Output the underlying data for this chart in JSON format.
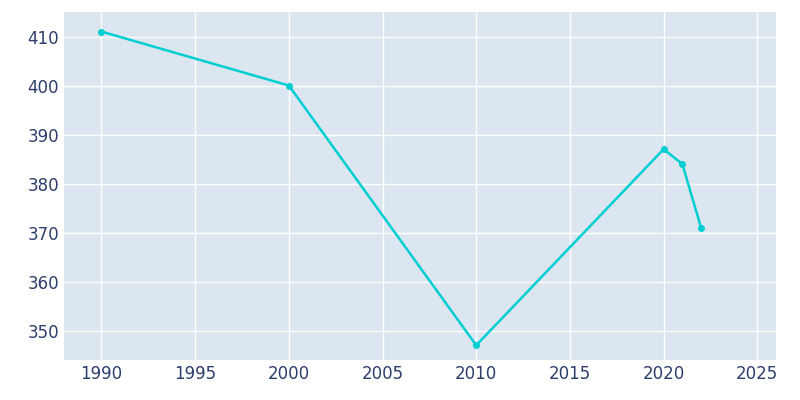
{
  "years": [
    1990,
    2000,
    2010,
    2020,
    2021,
    2022
  ],
  "population": [
    411,
    400,
    347,
    387,
    384,
    371
  ],
  "line_color": "#00CED1",
  "line_width": 1.8,
  "marker": "o",
  "marker_size": 4,
  "plot_bg_color": "#dce6f0",
  "fig_bg_color": "#ffffff",
  "grid_color": "#ffffff",
  "xlim": [
    1988,
    2026
  ],
  "ylim": [
    344,
    415
  ],
  "xticks": [
    1990,
    1995,
    2000,
    2005,
    2010,
    2015,
    2020,
    2025
  ],
  "yticks": [
    350,
    360,
    370,
    380,
    390,
    400,
    410
  ],
  "tick_color": "#2c3e6b",
  "tick_fontsize": 12
}
